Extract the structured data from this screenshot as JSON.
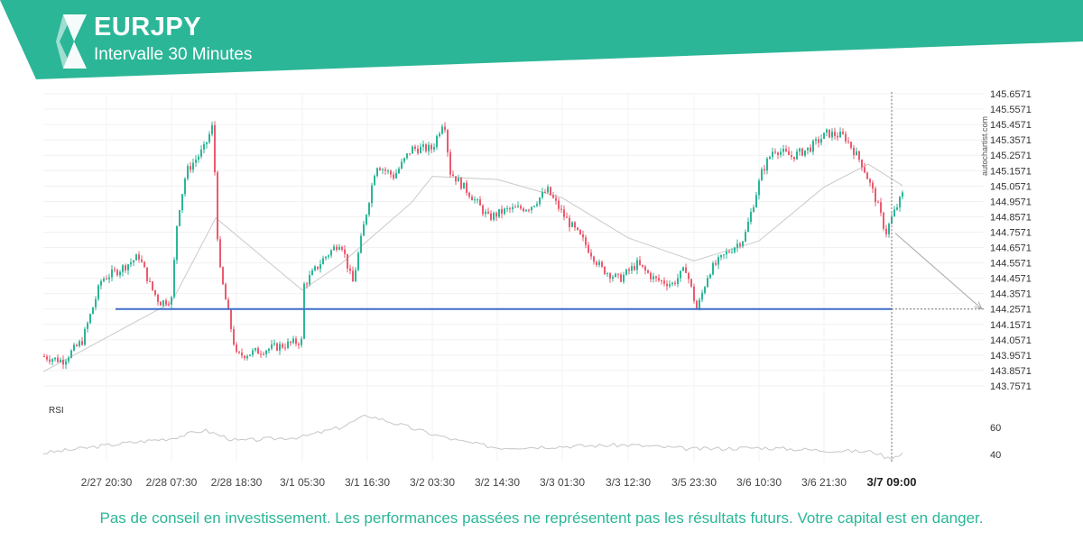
{
  "header": {
    "symbol": "EURJPY",
    "interval": "Intervalle 30 Minutes"
  },
  "colors": {
    "brand": "#2bb697",
    "up_candle": "#2bb697",
    "down_candle": "#ec5a6e",
    "support_line": "#3f6ec9"
  },
  "watermark": "autochartist.com",
  "footer": {
    "disclaimer": "Pas de conseil en investissement. Les performances passées ne représentent pas les résultats futurs. Votre capital est en danger."
  },
  "chart_data": {
    "type": "candlestick",
    "symbol": "EURJPY",
    "price_axis": {
      "ticks": [
        "145.6571",
        "145.5571",
        "145.4571",
        "145.3571",
        "145.2571",
        "145.1571",
        "145.0571",
        "144.9571",
        "144.8571",
        "144.7571",
        "144.6571",
        "144.5571",
        "144.4571",
        "144.3571",
        "144.2571",
        "144.1571",
        "144.0571",
        "143.9571",
        "143.8571",
        "143.7571"
      ],
      "range": [
        143.7571,
        145.6571
      ],
      "position": "right"
    },
    "time_axis": {
      "ticks": [
        "2/27 20:30",
        "2/28 07:30",
        "2/28 18:30",
        "3/1 05:30",
        "3/1 16:30",
        "3/2 03:30",
        "3/2 14:30",
        "3/3 01:30",
        "3/3 12:30",
        "3/5 23:30",
        "3/6 10:30",
        "3/6 21:30",
        "3/7 09:00"
      ],
      "highlighted": "3/7 09:00"
    },
    "support_level": 144.2571,
    "forecast_arrow": {
      "from": {
        "time": "3/7 09:00",
        "price": 144.75
      },
      "to_price": 144.2571
    },
    "close_path": [
      {
        "t": "2/27 14:00",
        "p": 143.95
      },
      {
        "t": "2/27 16:00",
        "p": 143.92
      },
      {
        "t": "2/27 18:00",
        "p": 144.05
      },
      {
        "t": "2/27 20:00",
        "p": 144.45
      },
      {
        "t": "2/27 23:00",
        "p": 144.52
      },
      {
        "t": "2/28 02:00",
        "p": 144.6
      },
      {
        "t": "2/28 04:00",
        "p": 144.4
      },
      {
        "t": "2/28 05:30",
        "p": 144.3
      },
      {
        "t": "2/28 07:30",
        "p": 144.32
      },
      {
        "t": "2/28 08:30",
        "p": 144.85
      },
      {
        "t": "2/28 10:00",
        "p": 145.15
      },
      {
        "t": "2/28 13:00",
        "p": 145.3
      },
      {
        "t": "2/28 14:30",
        "p": 145.45
      },
      {
        "t": "2/28 15:30",
        "p": 144.55
      },
      {
        "t": "2/28 18:00",
        "p": 144.05
      },
      {
        "t": "2/28 21:00",
        "p": 143.95
      },
      {
        "t": "3/1 00:00",
        "p": 144.05
      },
      {
        "t": "3/1 03:00",
        "p": 144.2
      },
      {
        "t": "3/1 05:30",
        "p": 144.4
      },
      {
        "t": "3/1 09:00",
        "p": 144.58
      },
      {
        "t": "3/1 12:00",
        "p": 144.7
      },
      {
        "t": "3/1 14:00",
        "p": 144.42
      },
      {
        "t": "3/1 16:00",
        "p": 144.82
      },
      {
        "t": "3/1 18:00",
        "p": 145.2
      },
      {
        "t": "3/1 21:00",
        "p": 145.12
      },
      {
        "t": "3/2 00:00",
        "p": 145.3
      },
      {
        "t": "3/2 03:30",
        "p": 145.3
      },
      {
        "t": "3/2 05:30",
        "p": 145.5
      },
      {
        "t": "3/2 06:30",
        "p": 145.15
      },
      {
        "t": "3/2 10:00",
        "p": 145.0
      },
      {
        "t": "3/2 13:00",
        "p": 144.85
      },
      {
        "t": "3/2 16:00",
        "p": 144.9
      },
      {
        "t": "3/2 20:00",
        "p": 144.92
      },
      {
        "t": "3/2 23:00",
        "p": 145.03
      },
      {
        "t": "3/3 02:00",
        "p": 144.85
      },
      {
        "t": "3/3 05:00",
        "p": 144.7
      },
      {
        "t": "3/3 08:00",
        "p": 144.52
      },
      {
        "t": "3/3 11:00",
        "p": 144.45
      },
      {
        "t": "3/3 14:00",
        "p": 144.55
      },
      {
        "t": "3/3 17:00",
        "p": 144.45
      },
      {
        "t": "3/3 20:00",
        "p": 144.42
      },
      {
        "t": "3/5 22:00",
        "p": 144.52
      },
      {
        "t": "3/6 00:00",
        "p": 144.25
      },
      {
        "t": "3/6 02:00",
        "p": 144.5
      },
      {
        "t": "3/6 05:00",
        "p": 144.62
      },
      {
        "t": "3/6 08:00",
        "p": 144.72
      },
      {
        "t": "3/6 11:00",
        "p": 145.15
      },
      {
        "t": "3/6 13:00",
        "p": 145.3
      },
      {
        "t": "3/6 16:00",
        "p": 145.25
      },
      {
        "t": "3/6 19:00",
        "p": 145.3
      },
      {
        "t": "3/6 22:00",
        "p": 145.4
      },
      {
        "t": "3/7 01:00",
        "p": 145.38
      },
      {
        "t": "3/7 04:00",
        "p": 145.2
      },
      {
        "t": "3/7 06:30",
        "p": 144.95
      },
      {
        "t": "3/7 08:00",
        "p": 144.75
      },
      {
        "t": "3/7 09:00",
        "p": 144.85
      },
      {
        "t": "3/7 10:00",
        "p": 145.0
      }
    ],
    "moving_average": [
      {
        "t": "2/27 14:00",
        "p": 143.85
      },
      {
        "t": "2/28 07:30",
        "p": 144.3
      },
      {
        "t": "2/28 15:00",
        "p": 144.85
      },
      {
        "t": "3/1 03:00",
        "p": 144.38
      },
      {
        "t": "3/1 12:00",
        "p": 144.55
      },
      {
        "t": "3/2 00:00",
        "p": 144.95
      },
      {
        "t": "3/2 03:30",
        "p": 145.12
      },
      {
        "t": "3/2 14:30",
        "p": 145.1
      },
      {
        "t": "3/3 01:30",
        "p": 144.98
      },
      {
        "t": "3/3 12:30",
        "p": 144.72
      },
      {
        "t": "3/5 23:30",
        "p": 144.57
      },
      {
        "t": "3/6 10:30",
        "p": 144.7
      },
      {
        "t": "3/6 21:30",
        "p": 145.05
      },
      {
        "t": "3/7 05:00",
        "p": 145.2
      },
      {
        "t": "3/7 10:00",
        "p": 145.06
      }
    ],
    "rsi": {
      "label": "RSI",
      "ticks": [
        60,
        40
      ],
      "series": [
        {
          "t": "2/27 14:00",
          "v": 41
        },
        {
          "t": "2/27 23:00",
          "v": 48
        },
        {
          "t": "2/28 07:30",
          "v": 52
        },
        {
          "t": "2/28 13:00",
          "v": 58
        },
        {
          "t": "2/28 18:30",
          "v": 50
        },
        {
          "t": "3/1 05:30",
          "v": 53
        },
        {
          "t": "3/1 12:00",
          "v": 60
        },
        {
          "t": "3/1 16:30",
          "v": 69
        },
        {
          "t": "3/1 22:00",
          "v": 62
        },
        {
          "t": "3/2 03:30",
          "v": 55
        },
        {
          "t": "3/2 08:00",
          "v": 50
        },
        {
          "t": "3/2 14:30",
          "v": 45
        },
        {
          "t": "3/3 01:30",
          "v": 46
        },
        {
          "t": "3/3 12:30",
          "v": 47
        },
        {
          "t": "3/5 23:30",
          "v": 44
        },
        {
          "t": "3/6 10:30",
          "v": 45
        },
        {
          "t": "3/6 21:30",
          "v": 43
        },
        {
          "t": "3/7 06:00",
          "v": 42
        },
        {
          "t": "3/7 08:30",
          "v": 37
        },
        {
          "t": "3/7 10:00",
          "v": 41
        }
      ]
    }
  }
}
